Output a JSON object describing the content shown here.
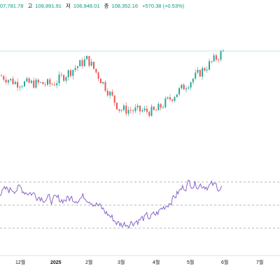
{
  "legend": {
    "open_value": "07,781.78",
    "high_label": "고",
    "high_value": "108,891.91",
    "low_label": "저",
    "low_value": "106,948.01",
    "close_label": "종",
    "close_value": "108,352.16",
    "change": "+570.38 (+0.53%)"
  },
  "x_axis": {
    "ticks": [
      "12월",
      "2025",
      "2월",
      "3월",
      "4월",
      "5월",
      "6월",
      "7월"
    ]
  },
  "chart_data": [
    {
      "type": "candlestick",
      "title": "",
      "xlabel": "",
      "ylabel": "",
      "x": [
        "12월",
        "2025",
        "2월",
        "3월",
        "4월",
        "5월",
        "6월"
      ],
      "series": [
        {
          "values": [
            95000,
            94500,
            105000,
            84000,
            83000,
            95000,
            108000
          ]
        }
      ],
      "up_color": "#26a69a",
      "down_color": "#ef5350",
      "grid": false
    },
    {
      "type": "line",
      "title": "",
      "xlabel": "",
      "ylabel": "",
      "x": [
        "12월",
        "2025",
        "2월",
        "3월",
        "4월",
        "5월",
        "6월"
      ],
      "series": [
        {
          "values": [
            62,
            52,
            55,
            33,
            40,
            66,
            62
          ]
        }
      ],
      "bands": [
        70,
        50,
        30
      ],
      "ylim": [
        20,
        80
      ],
      "line_color": "#7e57c2"
    }
  ]
}
